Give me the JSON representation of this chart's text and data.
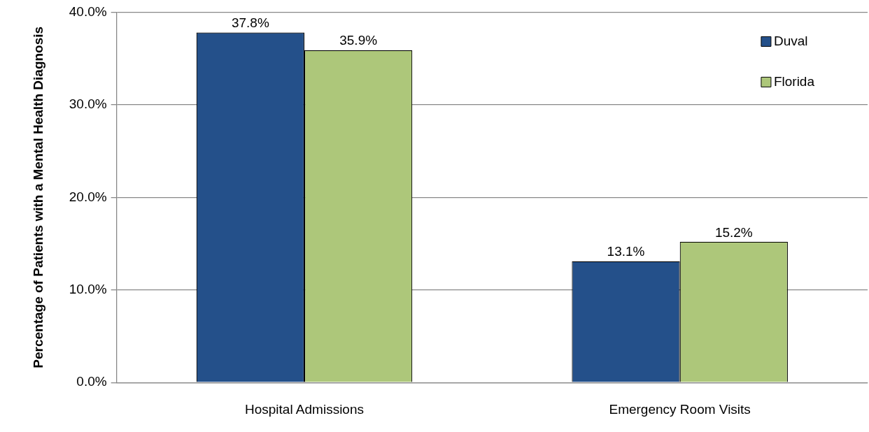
{
  "chart_data": {
    "type": "bar",
    "ylabel": "Percentage of Patients with a Mental Health Diagnosis",
    "categories": [
      "Hospital Admissions",
      "Emergency Room Visits"
    ],
    "series": [
      {
        "name": "Duval",
        "color": "#24508a",
        "values": [
          37.8,
          13.1
        ],
        "value_labels": [
          "37.8%",
          "13.1%"
        ]
      },
      {
        "name": "Florida",
        "color": "#adc77a",
        "values": [
          35.9,
          15.2
        ],
        "value_labels": [
          "35.9%",
          "15.2%"
        ]
      }
    ],
    "ylim": [
      0,
      40
    ],
    "yticks": [
      {
        "value": 0,
        "label": "0.0%"
      },
      {
        "value": 10,
        "label": "10.0%"
      },
      {
        "value": 20,
        "label": "20.0%"
      },
      {
        "value": 30,
        "label": "30.0%"
      },
      {
        "value": 40,
        "label": "40.0%"
      }
    ],
    "grid": "y",
    "legend": "top right"
  }
}
